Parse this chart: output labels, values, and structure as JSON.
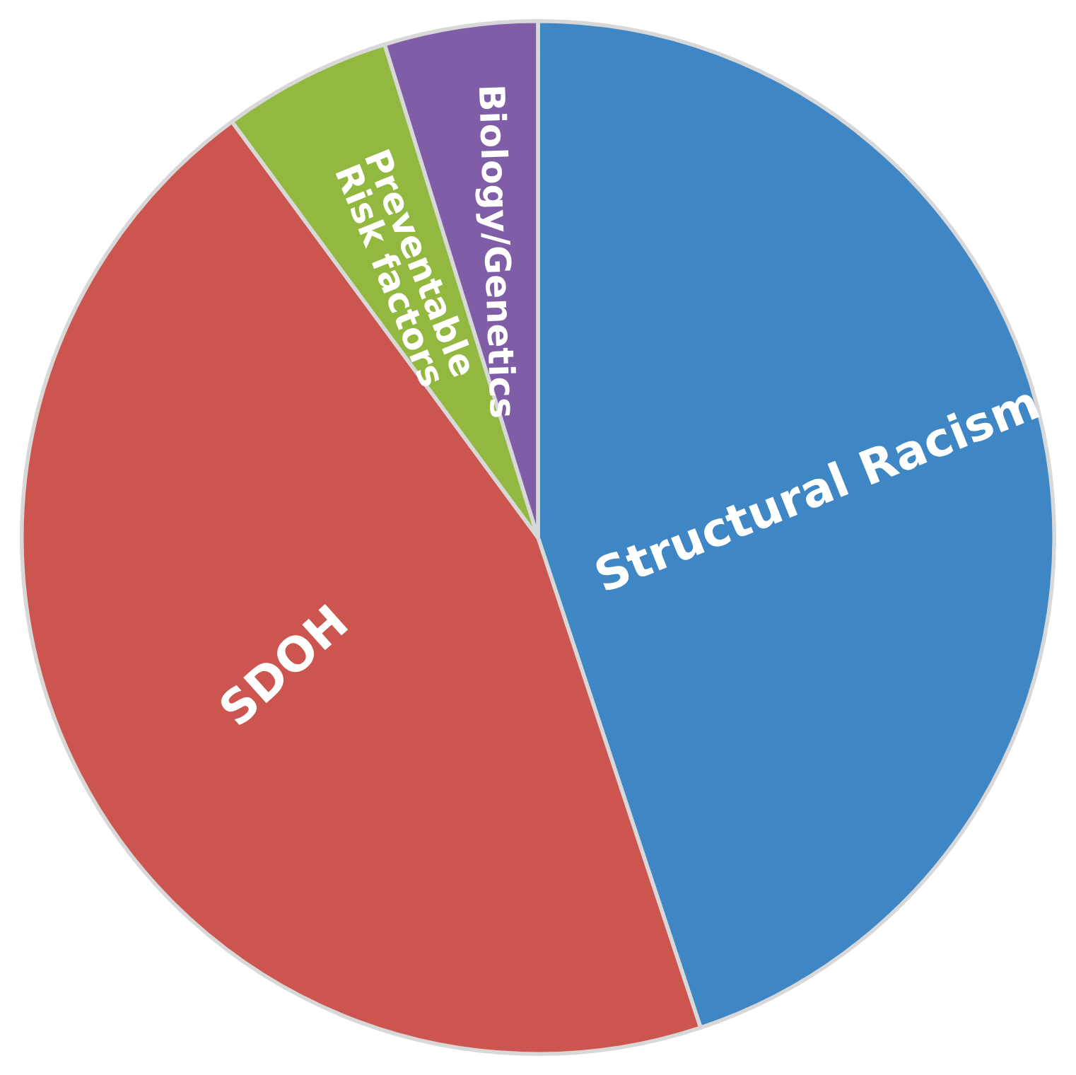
{
  "chart_data": {
    "type": "pie",
    "categories": [
      "Structural Racism",
      "SDOH",
      "Preventable\nRisk factors",
      "Biology/Genetics"
    ],
    "values": [
      44.9,
      45.0,
      5.3,
      4.8
    ],
    "colors": [
      "#3f86c4",
      "#cc5550",
      "#93b840",
      "#7f5ea7"
    ]
  }
}
